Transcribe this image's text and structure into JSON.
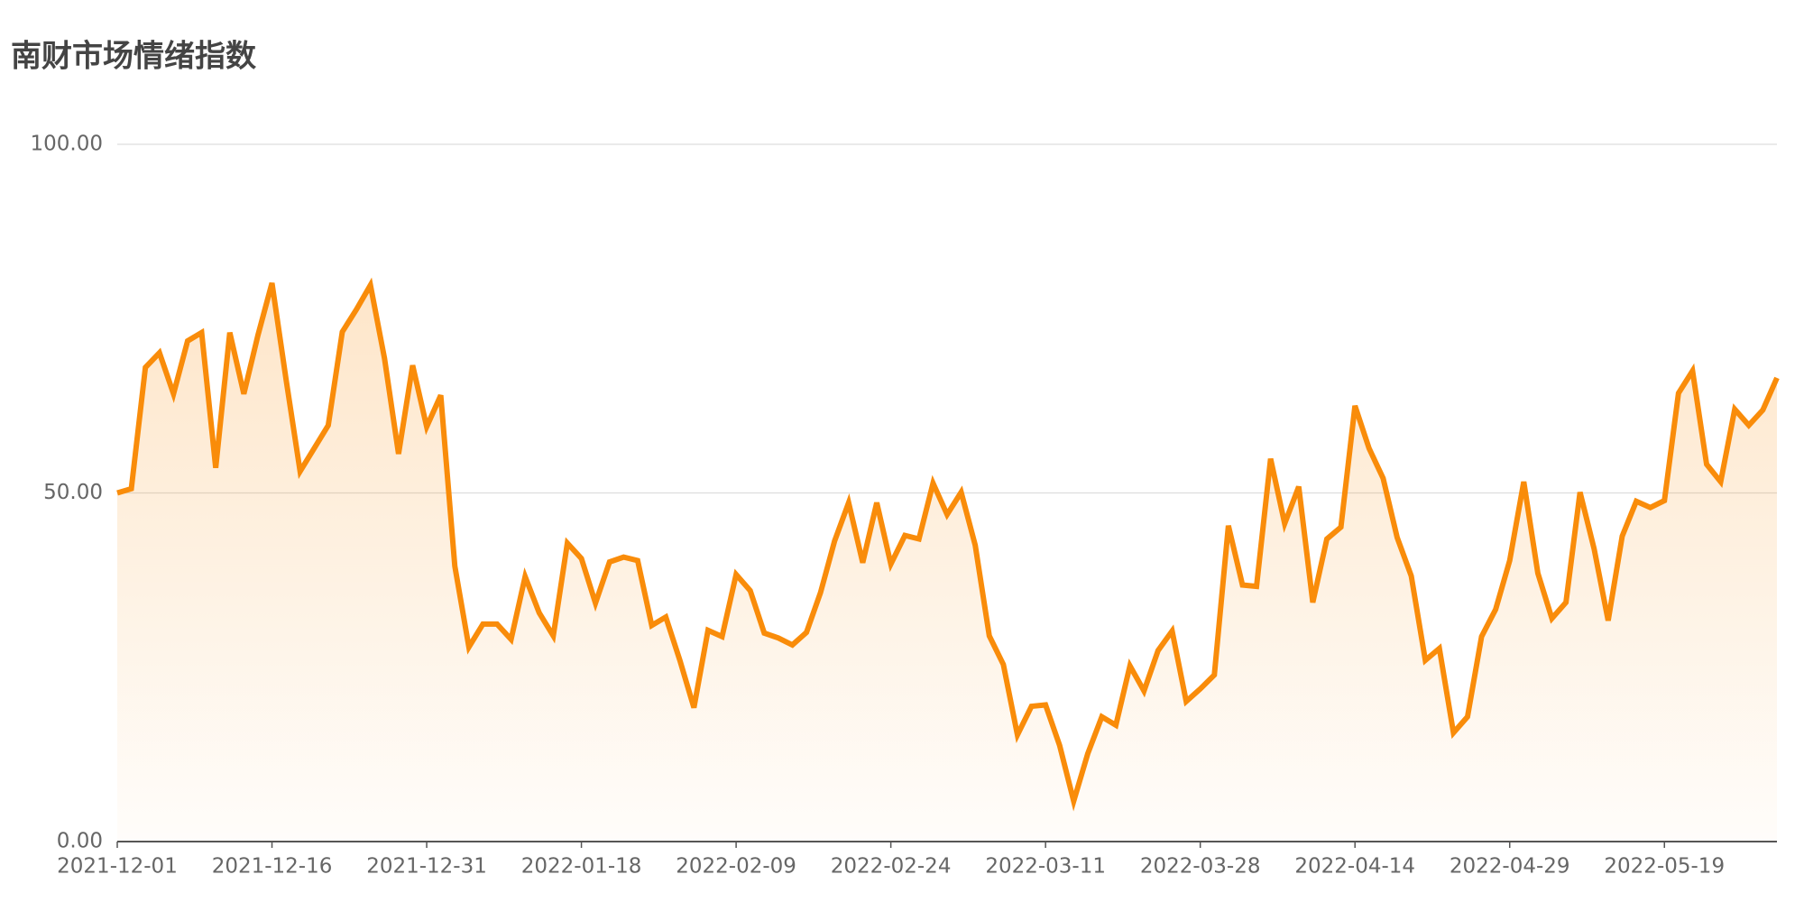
{
  "chart_data": {
    "type": "line",
    "title": "南财市场情绪指数",
    "categories": [
      "2021-12-01",
      null,
      null,
      null,
      null,
      null,
      null,
      null,
      null,
      null,
      null,
      "2021-12-16",
      null,
      null,
      null,
      null,
      null,
      null,
      null,
      null,
      null,
      null,
      "2021-12-31",
      null,
      null,
      null,
      null,
      null,
      null,
      null,
      null,
      null,
      null,
      "2022-01-18",
      null,
      null,
      null,
      null,
      null,
      null,
      null,
      null,
      null,
      null,
      "2022-02-09",
      null,
      null,
      null,
      null,
      null,
      null,
      null,
      null,
      null,
      null,
      "2022-02-24",
      null,
      null,
      null,
      null,
      null,
      null,
      null,
      null,
      null,
      null,
      "2022-03-11",
      null,
      null,
      null,
      null,
      null,
      null,
      null,
      null,
      null,
      null,
      "2022-03-28",
      null,
      null,
      null,
      null,
      null,
      null,
      null,
      null,
      null,
      null,
      "2022-04-14",
      null,
      null,
      null,
      null,
      null,
      null,
      null,
      null,
      null,
      null,
      "2022-04-29",
      null,
      null,
      null,
      null,
      null,
      null,
      null,
      null,
      null,
      null,
      "2022-05-19",
      null,
      null,
      null,
      null,
      null,
      null,
      null,
      null
    ],
    "values": [
      50,
      50.6,
      68,
      70.1,
      64.2,
      71.8,
      73,
      53.6,
      73,
      64.2,
      72.6,
      80.1,
      66.3,
      53.1,
      56.4,
      59.7,
      73.1,
      76.3,
      79.8,
      69.3,
      55.6,
      68.3,
      59.5,
      64,
      39.5,
      27.9,
      31.2,
      31.2,
      29,
      38,
      32.8,
      29.5,
      42.8,
      40.6,
      34.2,
      40.1,
      40.8,
      40.3,
      31,
      32.2,
      26,
      19.2,
      30.3,
      29.4,
      38.3,
      36,
      29.9,
      29.2,
      28.2,
      30,
      35.7,
      43.1,
      48.6,
      40,
      48.6,
      39.8,
      43.9,
      43.4,
      51.4,
      46.9,
      50.1,
      42.5,
      29.5,
      25.4,
      15.3,
      19.4,
      19.6,
      13.8,
      5.8,
      12.6,
      17.9,
      16.7,
      25.2,
      21.6,
      27.4,
      30.2,
      20.1,
      21.9,
      23.9,
      45.3,
      36.8,
      36.6,
      54.9,
      45.6,
      50.9,
      34.3,
      43.4,
      45.1,
      62.5,
      56.4,
      52.1,
      43.6,
      38.1,
      26,
      27.7,
      15.6,
      17.9,
      29.4,
      33.3,
      40.3,
      51.6,
      38.5,
      32,
      34.3,
      50.1,
      42,
      31.7,
      43.8,
      48.8,
      47.9,
      48.9,
      64.3,
      67.5,
      54.1,
      51.6,
      62,
      59.7,
      61.9,
      66.5
    ],
    "color": "#f98c0a",
    "ylim": [
      0,
      100
    ],
    "yticks": [
      {
        "value": 0,
        "label": "0.00"
      },
      {
        "value": 50,
        "label": "50.00"
      },
      {
        "value": 100,
        "label": "100.00"
      }
    ],
    "grid": true
  }
}
